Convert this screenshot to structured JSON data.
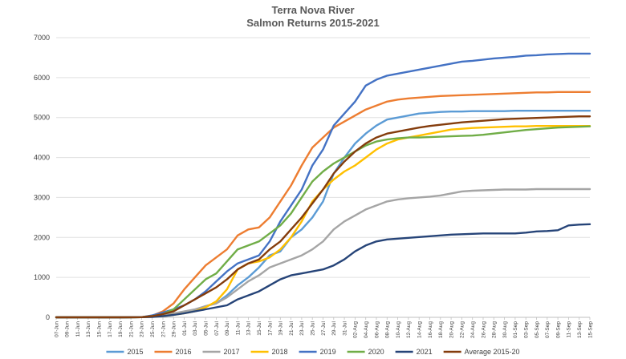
{
  "chart_data": {
    "type": "line",
    "title": "Terra Nova River",
    "subtitle": "Salmon Returns 2015-2021",
    "xlabel": "",
    "ylabel": "",
    "ylim": [
      0,
      7000
    ],
    "yticks": [
      0,
      1000,
      2000,
      3000,
      4000,
      5000,
      6000,
      7000
    ],
    "grid": true,
    "legend": "bottom",
    "x_tick_labels": [
      "07-Jun",
      "09-Jun",
      "11-Jun",
      "13-Jun",
      "15-Jun",
      "17-Jun",
      "19-Jun",
      "21-Jun",
      "23-Jun",
      "25-Jun",
      "27-Jun",
      "29-Jun",
      "01-Jul",
      "03-Jul",
      "05-Jul",
      "07-Jul",
      "09-Jul",
      "11-Jul",
      "13-Jul",
      "15-Jul",
      "17-Jul",
      "19-Jul",
      "21-Jul",
      "23-Jul",
      "25-Jul",
      "27-Jul",
      "29-Jul",
      "31-Jul",
      "02-Aug",
      "04-Aug",
      "06-Aug",
      "08-Aug",
      "10-Aug",
      "12-Aug",
      "14-Aug",
      "16-Aug",
      "18-Aug",
      "20-Aug",
      "22-Aug",
      "24-Aug",
      "26-Aug",
      "28-Aug",
      "30-Aug",
      "01-Sep",
      "03-Sep",
      "05-Sep",
      "07-Sep",
      "09-Sep",
      "11-Sep",
      "13-Sep",
      "15-Sep"
    ],
    "x_day_offsets": [
      0,
      6,
      12,
      16,
      18,
      20,
      22,
      24,
      26,
      28,
      30,
      32,
      34,
      36,
      38,
      40,
      42,
      44,
      46,
      48,
      50,
      52,
      54,
      56,
      58,
      60,
      62,
      64,
      66,
      68,
      70,
      72,
      74,
      76,
      78,
      80,
      82,
      84,
      86,
      88,
      90,
      92,
      94,
      96,
      98,
      100
    ],
    "x_note": "x values are days after 07-Jun",
    "series": [
      {
        "name": "2015",
        "color": "#5b9bd5",
        "values": [
          0,
          0,
          0,
          5,
          20,
          50,
          80,
          120,
          180,
          280,
          350,
          550,
          800,
          1000,
          1250,
          1550,
          1650,
          2000,
          2200,
          2500,
          2900,
          3600,
          4000,
          4350,
          4600,
          4800,
          4950,
          5000,
          5050,
          5100,
          5120,
          5140,
          5150,
          5150,
          5160,
          5160,
          5160,
          5160,
          5170,
          5170,
          5170,
          5170,
          5170,
          5170,
          5170,
          5170
        ]
      },
      {
        "name": "2016",
        "color": "#ed7d31",
        "values": [
          0,
          0,
          0,
          5,
          40,
          150,
          350,
          700,
          1000,
          1300,
          1500,
          1700,
          2050,
          2200,
          2250,
          2500,
          2900,
          3300,
          3800,
          4250,
          4500,
          4750,
          4900,
          5050,
          5200,
          5300,
          5400,
          5450,
          5480,
          5500,
          5520,
          5540,
          5550,
          5560,
          5570,
          5580,
          5590,
          5600,
          5610,
          5620,
          5630,
          5630,
          5640,
          5640,
          5640,
          5640
        ]
      },
      {
        "name": "2017",
        "color": "#a5a5a5",
        "values": [
          0,
          0,
          0,
          5,
          20,
          50,
          100,
          150,
          200,
          280,
          350,
          500,
          700,
          900,
          1050,
          1250,
          1350,
          1450,
          1550,
          1700,
          1900,
          2200,
          2400,
          2550,
          2700,
          2800,
          2900,
          2950,
          2980,
          3000,
          3020,
          3050,
          3100,
          3150,
          3170,
          3180,
          3190,
          3200,
          3200,
          3200,
          3210,
          3210,
          3210,
          3210,
          3210,
          3210
        ]
      },
      {
        "name": "2018",
        "color": "#ffc000",
        "values": [
          0,
          0,
          0,
          5,
          15,
          30,
          60,
          100,
          150,
          250,
          400,
          700,
          1200,
          1350,
          1400,
          1500,
          1700,
          2000,
          2400,
          2900,
          3200,
          3450,
          3650,
          3800,
          4000,
          4200,
          4350,
          4450,
          4500,
          4550,
          4600,
          4650,
          4700,
          4720,
          4740,
          4750,
          4760,
          4770,
          4780,
          4780,
          4790,
          4790,
          4790,
          4790,
          4790,
          4790
        ]
      },
      {
        "name": "2019",
        "color": "#4472c4",
        "values": [
          0,
          0,
          0,
          5,
          50,
          120,
          200,
          300,
          450,
          650,
          900,
          1150,
          1350,
          1450,
          1550,
          1900,
          2400,
          2800,
          3200,
          3800,
          4200,
          4800,
          5100,
          5400,
          5800,
          5950,
          6050,
          6100,
          6150,
          6200,
          6250,
          6300,
          6350,
          6400,
          6420,
          6450,
          6480,
          6500,
          6520,
          6550,
          6560,
          6580,
          6590,
          6600,
          6600,
          6600
        ]
      },
      {
        "name": "2020",
        "color": "#70ad47",
        "values": [
          0,
          0,
          0,
          5,
          30,
          80,
          200,
          450,
          700,
          950,
          1100,
          1400,
          1700,
          1800,
          1900,
          2100,
          2300,
          2600,
          3000,
          3400,
          3650,
          3850,
          4000,
          4150,
          4300,
          4400,
          4450,
          4480,
          4500,
          4500,
          4510,
          4520,
          4530,
          4540,
          4550,
          4570,
          4600,
          4630,
          4660,
          4690,
          4710,
          4730,
          4750,
          4760,
          4770,
          4780
        ]
      },
      {
        "name": "2021",
        "color": "#264478",
        "values": [
          0,
          0,
          0,
          5,
          10,
          30,
          60,
          100,
          150,
          200,
          250,
          300,
          450,
          550,
          650,
          800,
          950,
          1050,
          1100,
          1150,
          1200,
          1300,
          1450,
          1650,
          1800,
          1900,
          1950,
          1970,
          1990,
          2010,
          2030,
          2050,
          2070,
          2080,
          2090,
          2100,
          2100,
          2100,
          2100,
          2120,
          2150,
          2160,
          2180,
          2300,
          2320,
          2330
        ]
      },
      {
        "name": "Average 2015-20",
        "color": "#843c0c",
        "values": [
          0,
          0,
          0,
          5,
          30,
          80,
          150,
          300,
          450,
          600,
          750,
          950,
          1200,
          1350,
          1450,
          1700,
          1900,
          2200,
          2500,
          2850,
          3200,
          3600,
          3900,
          4150,
          4350,
          4500,
          4600,
          4650,
          4700,
          4750,
          4790,
          4820,
          4850,
          4880,
          4900,
          4920,
          4940,
          4960,
          4970,
          4980,
          4990,
          5000,
          5010,
          5020,
          5030,
          5030
        ]
      }
    ]
  }
}
